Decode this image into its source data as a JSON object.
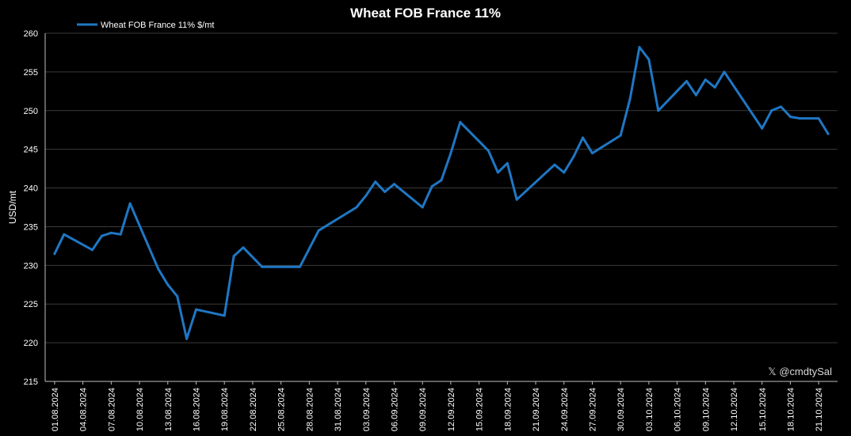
{
  "chart_data": {
    "type": "line",
    "title": "Wheat FOB France 11%",
    "ylabel": "USD/mt",
    "xlabel": "",
    "ylim": [
      215,
      260
    ],
    "yticks": [
      215,
      220,
      225,
      230,
      235,
      240,
      245,
      250,
      255,
      260
    ],
    "grid": true,
    "legend_position": "top-left",
    "x_tick_labels": [
      "01.08.2024",
      "04.08.2024",
      "07.08.2024",
      "10.08.2024",
      "13.08.2024",
      "16.08.2024",
      "19.08.2024",
      "22.08.2024",
      "25.08.2024",
      "28.08.2024",
      "31.08.2024",
      "03.09.2024",
      "06.09.2024",
      "09.09.2024",
      "12.09.2024",
      "15.09.2024",
      "18.09.2024",
      "21.09.2024",
      "24.09.2024",
      "27.09.2024",
      "30.09.2024",
      "03.10.2024",
      "06.10.2024",
      "09.10.2024",
      "12.10.2024",
      "15.10.2024",
      "18.10.2024",
      "21.10.2024"
    ],
    "series": [
      {
        "name": "Wheat FOB France 11% $/mt",
        "color": "#1f77c4",
        "x": [
          "2024-08-01",
          "2024-08-02",
          "2024-08-05",
          "2024-08-06",
          "2024-08-07",
          "2024-08-08",
          "2024-08-09",
          "2024-08-12",
          "2024-08-13",
          "2024-08-14",
          "2024-08-15",
          "2024-08-16",
          "2024-08-19",
          "2024-08-20",
          "2024-08-21",
          "2024-08-23",
          "2024-08-27",
          "2024-08-29",
          "2024-09-02",
          "2024-09-03",
          "2024-09-04",
          "2024-09-05",
          "2024-09-06",
          "2024-09-09",
          "2024-09-10",
          "2024-09-11",
          "2024-09-12",
          "2024-09-13",
          "2024-09-16",
          "2024-09-17",
          "2024-09-18",
          "2024-09-19",
          "2024-09-23",
          "2024-09-24",
          "2024-09-25",
          "2024-09-26",
          "2024-09-27",
          "2024-09-30",
          "2024-10-01",
          "2024-10-02",
          "2024-10-03",
          "2024-10-04",
          "2024-10-07",
          "2024-10-08",
          "2024-10-09",
          "2024-10-10",
          "2024-10-11",
          "2024-10-15",
          "2024-10-16",
          "2024-10-17",
          "2024-10-18",
          "2024-10-19",
          "2024-10-21",
          "2024-10-22"
        ],
        "values": [
          231.5,
          234.0,
          232.0,
          233.8,
          234.2,
          234.0,
          238.0,
          229.5,
          227.5,
          226.0,
          220.5,
          224.3,
          223.5,
          231.2,
          232.3,
          229.8,
          229.8,
          234.5,
          237.5,
          239.0,
          240.8,
          239.5,
          240.5,
          237.5,
          240.2,
          241.0,
          244.5,
          248.5,
          244.8,
          242.0,
          243.2,
          238.5,
          243.0,
          242.0,
          244.0,
          246.5,
          244.5,
          246.8,
          251.5,
          258.2,
          256.6,
          250.0,
          253.8,
          252.0,
          254.0,
          253.0,
          255.0,
          247.7,
          250.0,
          250.5,
          249.2,
          249.0,
          249.0,
          247.0
        ]
      }
    ]
  },
  "watermark": {
    "icon": "x-logo-icon",
    "text": "𝕏 @cmdtySal"
  }
}
